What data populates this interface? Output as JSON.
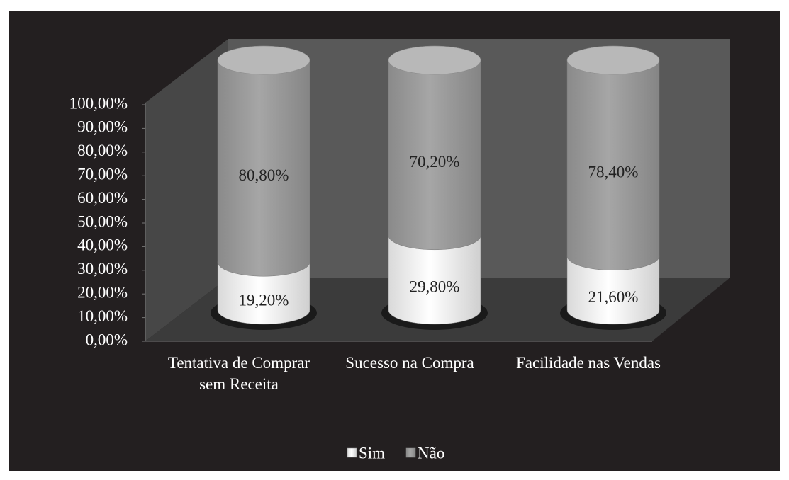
{
  "chart_data": {
    "type": "stacked-cylinder",
    "categories": [
      "Tentativa de Comprar sem Receita",
      "Sucesso na Compra",
      "Facilidade nas Vendas"
    ],
    "series": [
      {
        "name": "Sim",
        "color": "#f2f2f2",
        "values": [
          19.2,
          29.8,
          21.6
        ],
        "value_labels": [
          "19,20%",
          "29,80%",
          "21,60%"
        ]
      },
      {
        "name": "Não",
        "color": "#9a9a9a",
        "values": [
          80.8,
          70.2,
          78.4
        ],
        "value_labels": [
          "80,80%",
          "70,20%",
          "78,40%"
        ]
      }
    ],
    "ylim": [
      0,
      100
    ],
    "yticks": [
      {
        "value": 0,
        "label": "0,00%"
      },
      {
        "value": 10,
        "label": "10,00%"
      },
      {
        "value": 20,
        "label": "20,00%"
      },
      {
        "value": 30,
        "label": "30,00%"
      },
      {
        "value": 40,
        "label": "40,00%"
      },
      {
        "value": 50,
        "label": "50,00%"
      },
      {
        "value": 60,
        "label": "60,00%"
      },
      {
        "value": 70,
        "label": "70,00%"
      },
      {
        "value": 80,
        "label": "80,00%"
      },
      {
        "value": 90,
        "label": "90,00%"
      },
      {
        "value": 100,
        "label": "100,00%"
      }
    ],
    "legend": "bottom"
  }
}
